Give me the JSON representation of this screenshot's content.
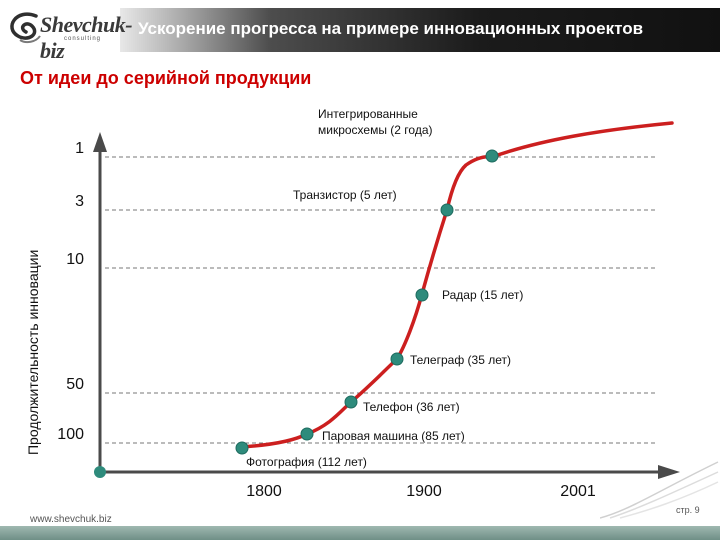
{
  "header": {
    "title": "Ускорение прогресса на примере инновационных проектов"
  },
  "logo": {
    "text": "Shevchuk-biz",
    "sub": "consulting"
  },
  "subtitle": "От идеи до серийной продукции",
  "footer": {
    "site": "www.shevchuk.biz",
    "page": "стр. 9"
  },
  "colors": {
    "curve": "#cc1f1f",
    "marker": "#2e8b7c",
    "title_bg": "#1b1b1b",
    "subtitle": "#cc0000"
  },
  "chart_data": {
    "type": "line",
    "ylabel": "Продолжительность инновации",
    "xlabel": "",
    "x_ticks": [
      "1800",
      "1900",
      "2001"
    ],
    "y_ticks": [
      "1",
      "3",
      "10",
      "50",
      "100"
    ],
    "grid": "dashed horizontal lines at y ticks",
    "points": [
      {
        "label": "Фотография (112 лет)",
        "year": 1826,
        "duration": 112
      },
      {
        "label": "Паровая машина (85 лет)",
        "year": 1836,
        "duration": 85
      },
      {
        "label": "Телефон (36 лет)",
        "year": 1856,
        "duration": 36
      },
      {
        "label": "Телеграф (35 лет)",
        "year": 1870,
        "duration": 35
      },
      {
        "label": "Радар (15 лет)",
        "year": 1880,
        "duration": 15
      },
      {
        "label": "Транзистор (5 лет)",
        "year": 1890,
        "duration": 5
      },
      {
        "label": "Интегрированные микросхемы (2 года)",
        "year": 1910,
        "duration": 2
      }
    ]
  }
}
